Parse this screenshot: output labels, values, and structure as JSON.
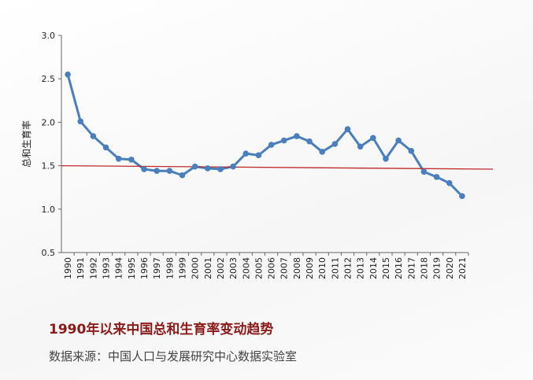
{
  "chart_data": {
    "type": "line",
    "y_label": "总和生育率",
    "title": "1990年以来中国总和生育率变动趋势",
    "source": "数据来源：中国人口与发展研究中心数据实验室",
    "categories": [
      "1990",
      "1991",
      "1992",
      "1993",
      "1994",
      "1995",
      "1996",
      "1997",
      "1998",
      "1999",
      "2000",
      "2001",
      "2002",
      "2003",
      "2004",
      "2005",
      "2006",
      "2007",
      "2008",
      "2009",
      "2010",
      "2011",
      "2012",
      "2013",
      "2014",
      "2015",
      "2016",
      "2017",
      "2018",
      "2019",
      "2020",
      "2021"
    ],
    "values": [
      2.55,
      2.01,
      1.84,
      1.71,
      1.58,
      1.57,
      1.46,
      1.44,
      1.44,
      1.39,
      1.49,
      1.47,
      1.46,
      1.49,
      1.64,
      1.62,
      1.74,
      1.79,
      1.84,
      1.78,
      1.66,
      1.75,
      1.92,
      1.72,
      1.82,
      1.58,
      1.79,
      1.67,
      1.43,
      1.37,
      1.3,
      1.15
    ],
    "color": "#4a7fbd",
    "reference_line": [
      1.5,
      1.46
    ],
    "reference_color": "#c0282c",
    "ylim": [
      0.5,
      3.0
    ],
    "yticks": [
      0.5,
      {
        "value": 1.0,
        "label": "1.0"
      },
      1.5,
      {
        "value": 2.0,
        "label": "2.0"
      },
      2.5,
      {
        "value": 3.0,
        "label": "3.0"
      }
    ]
  }
}
